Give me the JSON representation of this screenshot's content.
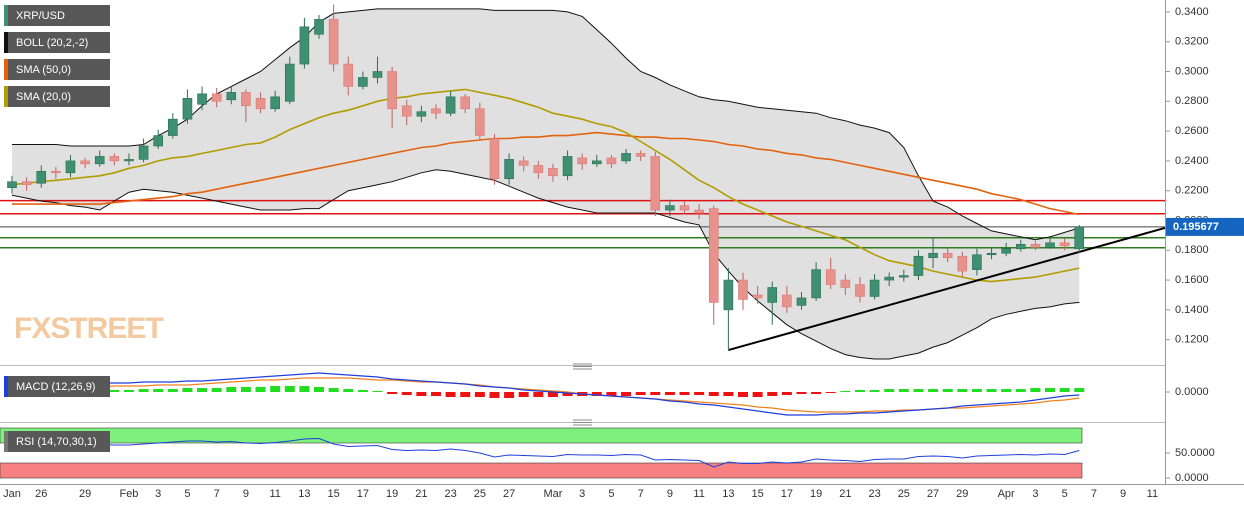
{
  "chart_data": [
    {
      "type": "candlestick",
      "name": "XRP/USD",
      "watermark": "FXSTREET",
      "categories": [
        "Jan",
        null,
        "26",
        null,
        null,
        "29",
        null,
        null,
        "Feb",
        null,
        "3",
        null,
        "5",
        null,
        "7",
        null,
        "9",
        null,
        "11",
        null,
        "13",
        null,
        "15",
        null,
        "17",
        null,
        "19",
        null,
        "21",
        null,
        "23",
        null,
        "25",
        null,
        "27",
        null,
        null,
        "Mar",
        null,
        "3",
        null,
        "5",
        null,
        "7",
        null,
        "9",
        null,
        "11",
        null,
        "13",
        null,
        "15",
        null,
        "17",
        null,
        "19",
        null,
        "21",
        null,
        "23",
        null,
        "25",
        null,
        "27",
        null,
        "29",
        null,
        null,
        "Apr",
        null,
        "3",
        null,
        "5",
        null,
        "7",
        null,
        "9",
        null,
        "11"
      ],
      "open": [
        0.222,
        0.226,
        0.225,
        0.233,
        0.232,
        0.24,
        0.238,
        0.243,
        0.24,
        0.241,
        0.25,
        0.257,
        0.268,
        0.278,
        0.285,
        0.281,
        0.286,
        0.282,
        0.275,
        0.28,
        0.305,
        0.325,
        0.335,
        0.305,
        0.29,
        0.296,
        0.3,
        0.277,
        0.27,
        0.275,
        0.272,
        0.283,
        0.275,
        0.255,
        0.228,
        0.24,
        0.237,
        0.235,
        0.23,
        0.242,
        0.238,
        0.242,
        0.24,
        0.245,
        0.243,
        0.207,
        0.21,
        0.207,
        0.208,
        0.14,
        0.16,
        0.15,
        0.145,
        0.15,
        0.143,
        0.148,
        0.167,
        0.16,
        0.157,
        0.149,
        0.16,
        0.162,
        0.163,
        0.175,
        0.178,
        0.176,
        0.167,
        0.177,
        0.178,
        0.181,
        0.184,
        0.182,
        0.185,
        0.181,
        null,
        null,
        null,
        null,
        null
      ],
      "high": [
        0.23,
        0.229,
        0.237,
        0.236,
        0.244,
        0.242,
        0.247,
        0.245,
        0.245,
        0.255,
        0.261,
        0.272,
        0.288,
        0.29,
        0.289,
        0.29,
        0.288,
        0.286,
        0.287,
        0.31,
        0.336,
        0.338,
        0.345,
        0.31,
        0.3,
        0.31,
        0.303,
        0.281,
        0.277,
        0.278,
        0.287,
        0.285,
        0.279,
        0.258,
        0.245,
        0.243,
        0.24,
        0.238,
        0.247,
        0.245,
        0.244,
        0.244,
        0.248,
        0.247,
        0.246,
        0.214,
        0.213,
        0.211,
        0.21,
        0.168,
        0.165,
        0.156,
        0.159,
        0.156,
        0.152,
        0.172,
        0.175,
        0.164,
        0.162,
        0.164,
        0.165,
        0.167,
        0.18,
        0.188,
        0.182,
        0.179,
        0.181,
        0.182,
        0.185,
        0.187,
        0.186,
        0.188,
        0.188,
        0.197,
        null,
        null,
        null,
        null,
        null
      ],
      "low": [
        0.218,
        0.22,
        0.222,
        0.228,
        0.229,
        0.235,
        0.236,
        0.237,
        0.237,
        0.239,
        0.248,
        0.255,
        0.265,
        0.274,
        0.276,
        0.278,
        0.266,
        0.272,
        0.273,
        0.278,
        0.302,
        0.322,
        0.3,
        0.284,
        0.288,
        0.292,
        0.262,
        0.264,
        0.266,
        0.268,
        0.27,
        0.272,
        0.254,
        0.224,
        0.224,
        0.233,
        0.228,
        0.226,
        0.227,
        0.234,
        0.236,
        0.235,
        0.238,
        0.24,
        0.203,
        0.203,
        0.204,
        0.201,
        0.13,
        0.113,
        0.14,
        0.144,
        0.13,
        0.138,
        0.14,
        0.146,
        0.154,
        0.15,
        0.145,
        0.147,
        0.156,
        0.159,
        0.16,
        0.168,
        0.172,
        0.162,
        0.163,
        0.174,
        0.176,
        0.179,
        0.18,
        0.181,
        0.18,
        0.178,
        null,
        null,
        null,
        null,
        null
      ],
      "close": [
        0.226,
        0.224,
        0.233,
        0.232,
        0.24,
        0.238,
        0.243,
        0.24,
        0.241,
        0.25,
        0.257,
        0.268,
        0.282,
        0.285,
        0.28,
        0.286,
        0.277,
        0.275,
        0.283,
        0.305,
        0.33,
        0.335,
        0.305,
        0.29,
        0.296,
        0.3,
        0.275,
        0.27,
        0.273,
        0.272,
        0.283,
        0.275,
        0.257,
        0.228,
        0.241,
        0.237,
        0.232,
        0.23,
        0.243,
        0.238,
        0.24,
        0.238,
        0.245,
        0.243,
        0.207,
        0.21,
        0.207,
        0.205,
        0.145,
        0.16,
        0.147,
        0.148,
        0.155,
        0.142,
        0.148,
        0.167,
        0.157,
        0.155,
        0.149,
        0.16,
        0.162,
        0.163,
        0.176,
        0.178,
        0.175,
        0.166,
        0.177,
        0.178,
        0.181,
        0.184,
        0.182,
        0.185,
        0.183,
        0.195677,
        null,
        null,
        null,
        null,
        null
      ],
      "up_color": "#3f8f72",
      "down_color": "#e8928d",
      "price_color": "#1565c0",
      "bands": {
        "name": "BOLL (20,2,-2)",
        "color": "#111111",
        "fill": "#d8d8d8",
        "upper": [
          0.251,
          0.251,
          0.251,
          0.251,
          0.25,
          0.25,
          0.25,
          0.25,
          0.25,
          0.251,
          0.257,
          0.262,
          0.268,
          0.277,
          0.285,
          0.29,
          0.295,
          0.3,
          0.308,
          0.316,
          0.323,
          0.333,
          0.339,
          0.34,
          0.341,
          0.342,
          0.342,
          0.342,
          0.342,
          0.342,
          0.342,
          0.342,
          0.342,
          0.341,
          0.341,
          0.341,
          0.341,
          0.341,
          0.34,
          0.337,
          0.328,
          0.319,
          0.309,
          0.3,
          0.296,
          0.291,
          0.287,
          0.283,
          0.281,
          0.28,
          0.278,
          0.276,
          0.275,
          0.274,
          0.273,
          0.272,
          0.269,
          0.267,
          0.264,
          0.262,
          0.259,
          0.249,
          0.23,
          0.213,
          0.209,
          0.203,
          0.198,
          0.193,
          0.191,
          0.189,
          0.187,
          0.189,
          0.192,
          0.195,
          null,
          null,
          null,
          null,
          null
        ],
        "lower": [
          0.217,
          0.215,
          0.213,
          0.212,
          0.21,
          0.209,
          0.207,
          0.213,
          0.219,
          0.221,
          0.22,
          0.219,
          0.217,
          0.215,
          0.213,
          0.211,
          0.209,
          0.207,
          0.207,
          0.207,
          0.208,
          0.208,
          0.214,
          0.22,
          0.222,
          0.224,
          0.226,
          0.229,
          0.232,
          0.234,
          0.233,
          0.231,
          0.229,
          0.227,
          0.223,
          0.219,
          0.215,
          0.212,
          0.209,
          0.207,
          0.205,
          0.205,
          0.205,
          0.205,
          0.205,
          0.202,
          0.199,
          0.197,
          0.178,
          0.166,
          0.155,
          0.146,
          0.138,
          0.13,
          0.124,
          0.119,
          0.114,
          0.11,
          0.108,
          0.107,
          0.107,
          0.109,
          0.111,
          0.115,
          0.118,
          0.123,
          0.128,
          0.134,
          0.137,
          0.139,
          0.141,
          0.142,
          0.144,
          0.145,
          null,
          null,
          null,
          null,
          null
        ]
      },
      "series": [
        {
          "name": "SMA (50,0)",
          "color": "#e2620e",
          "values": [
            0.211,
            0.211,
            0.211,
            0.211,
            0.211,
            0.211,
            0.211,
            0.212,
            0.213,
            0.214,
            0.215,
            0.216,
            0.218,
            0.219,
            0.221,
            0.223,
            0.225,
            0.227,
            0.229,
            0.231,
            0.233,
            0.235,
            0.237,
            0.239,
            0.241,
            0.243,
            0.245,
            0.247,
            0.249,
            0.25,
            0.252,
            0.253,
            0.254,
            0.255,
            0.255,
            0.256,
            0.256,
            0.257,
            0.257,
            0.258,
            0.259,
            0.258,
            0.257,
            0.256,
            0.256,
            0.255,
            0.255,
            0.254,
            0.253,
            0.251,
            0.25,
            0.248,
            0.247,
            0.245,
            0.244,
            0.242,
            0.241,
            0.239,
            0.237,
            0.235,
            0.233,
            0.231,
            0.229,
            0.227,
            0.225,
            0.223,
            0.221,
            0.218,
            0.216,
            0.214,
            0.211,
            0.208,
            0.206,
            0.204,
            null,
            null,
            null,
            null,
            null
          ]
        },
        {
          "name": "SMA (20,0)",
          "color": "#b39c00",
          "values": [
            0.224,
            0.225,
            0.226,
            0.227,
            0.228,
            0.229,
            0.23,
            0.232,
            0.235,
            0.237,
            0.24,
            0.242,
            0.243,
            0.245,
            0.247,
            0.249,
            0.251,
            0.252,
            0.256,
            0.261,
            0.265,
            0.269,
            0.272,
            0.274,
            0.277,
            0.28,
            0.282,
            0.283,
            0.285,
            0.286,
            0.287,
            0.288,
            0.286,
            0.284,
            0.282,
            0.279,
            0.276,
            0.272,
            0.27,
            0.268,
            0.265,
            0.263,
            0.259,
            0.253,
            0.247,
            0.241,
            0.234,
            0.227,
            0.222,
            0.216,
            0.211,
            0.207,
            0.203,
            0.199,
            0.196,
            0.193,
            0.19,
            0.187,
            0.182,
            0.177,
            0.173,
            0.171,
            0.169,
            0.166,
            0.164,
            0.162,
            0.16,
            0.159,
            0.16,
            0.161,
            0.162,
            0.164,
            0.166,
            0.168,
            null,
            null,
            null,
            null,
            null
          ]
        }
      ],
      "levels": [
        {
          "value": 0.2133,
          "color": "#dd1111"
        },
        {
          "value": 0.2045,
          "color": "#dd1111"
        },
        {
          "value": 0.1884,
          "color": "#2e7d1e"
        },
        {
          "value": 0.1817,
          "color": "#2e7d1e"
        }
      ],
      "trendline": [
        0.113,
        0.195
      ],
      "ylim": [
        0.105,
        0.348
      ],
      "yticks": [
        {
          "value": 0.12,
          "label": "0.1200"
        },
        {
          "value": 0.14,
          "label": "0.1400"
        },
        {
          "value": 0.16,
          "label": "0.1600"
        },
        {
          "value": 0.18,
          "label": "0.1800"
        },
        {
          "value": 0.2,
          "label": "0.2000"
        },
        {
          "value": 0.22,
          "label": "0.2200"
        },
        {
          "value": 0.24,
          "label": "0.2400"
        },
        {
          "value": 0.26,
          "label": "0.2600"
        },
        {
          "value": 0.28,
          "label": "0.2800"
        },
        {
          "value": 0.3,
          "label": "0.3000"
        },
        {
          "value": 0.32,
          "label": "0.3200"
        },
        {
          "value": 0.34,
          "label": "0.3400"
        }
      ]
    },
    {
      "type": "macd",
      "name": "MACD (12,26,9)",
      "color": "#1f3fdc",
      "signal_color": "#f0821e",
      "up_color": "#22dd22",
      "down_color": "#ee1111",
      "macd": [
        0.007,
        0.007,
        0.007,
        0.008,
        0.008,
        0.008,
        0.009,
        0.009,
        0.009,
        0.01,
        0.01,
        0.01,
        0.011,
        0.011,
        0.012,
        0.013,
        0.014,
        0.015,
        0.016,
        0.017,
        0.018,
        0.019,
        0.018,
        0.017,
        0.016,
        0.015,
        0.013,
        0.012,
        0.011,
        0.01,
        0.009,
        0.008,
        0.006,
        0.005,
        0.004,
        0.002,
        0.001,
        0.0,
        -0.001,
        -0.002,
        -0.003,
        -0.004,
        -0.005,
        -0.006,
        -0.007,
        -0.009,
        -0.01,
        -0.012,
        -0.013,
        -0.015,
        -0.017,
        -0.019,
        -0.021,
        -0.023,
        -0.023,
        -0.023,
        -0.022,
        -0.022,
        -0.021,
        -0.021,
        -0.02,
        -0.019,
        -0.018,
        -0.017,
        -0.016,
        -0.014,
        -0.013,
        -0.012,
        -0.011,
        -0.01,
        -0.008,
        -0.006,
        -0.004,
        -0.003,
        null,
        null,
        null,
        null,
        null
      ],
      "signal": [
        0.004,
        0.004,
        0.004,
        0.005,
        0.005,
        0.005,
        0.005,
        0.006,
        0.006,
        0.006,
        0.007,
        0.007,
        0.007,
        0.008,
        0.009,
        0.01,
        0.011,
        0.012,
        0.012,
        0.013,
        0.014,
        0.014,
        0.014,
        0.014,
        0.013,
        0.012,
        0.012,
        0.011,
        0.01,
        0.01,
        0.009,
        0.008,
        0.007,
        0.005,
        0.004,
        0.003,
        0.002,
        0.001,
        0.0,
        -0.002,
        -0.003,
        -0.004,
        -0.005,
        -0.006,
        -0.007,
        -0.008,
        -0.009,
        -0.01,
        -0.011,
        -0.012,
        -0.013,
        -0.015,
        -0.016,
        -0.018,
        -0.019,
        -0.02,
        -0.02,
        -0.02,
        -0.02,
        -0.019,
        -0.019,
        -0.018,
        -0.018,
        -0.017,
        -0.016,
        -0.016,
        -0.015,
        -0.014,
        -0.013,
        -0.012,
        -0.011,
        -0.009,
        -0.008,
        -0.006,
        null,
        null,
        null,
        null,
        null
      ],
      "histogram": [
        0.002,
        0.002,
        0.002,
        0.002,
        0.002,
        0.002,
        0.002,
        0.002,
        0.002,
        0.003,
        0.003,
        0.003,
        0.004,
        0.004,
        0.004,
        0.005,
        0.005,
        0.005,
        0.006,
        0.006,
        0.006,
        0.005,
        0.004,
        0.003,
        0.002,
        0.001,
        -0.002,
        -0.003,
        -0.004,
        -0.004,
        -0.005,
        -0.005,
        -0.005,
        -0.006,
        -0.006,
        -0.005,
        -0.005,
        -0.005,
        -0.004,
        -0.004,
        -0.004,
        -0.004,
        -0.004,
        -0.003,
        -0.003,
        -0.003,
        -0.003,
        -0.003,
        -0.004,
        -0.004,
        -0.005,
        -0.005,
        -0.004,
        -0.003,
        -0.002,
        -0.002,
        -0.001,
        0.001,
        0.002,
        0.002,
        0.003,
        0.003,
        0.003,
        0.003,
        0.003,
        0.003,
        0.003,
        0.003,
        0.003,
        0.003,
        0.004,
        0.004,
        0.004,
        0.004,
        null,
        null,
        null,
        null,
        null
      ],
      "ylim": [
        -0.028,
        0.022
      ],
      "yticks": [
        {
          "value": 0,
          "label": "0.0000"
        }
      ]
    },
    {
      "type": "rsi",
      "name": "RSI (14,70,30,1)",
      "color": "#1f3fdc",
      "values": [
        62,
        60,
        64,
        63,
        66,
        65,
        67,
        66,
        66,
        68,
        70,
        72,
        74,
        74,
        72,
        73,
        70,
        69,
        71,
        74,
        78,
        79,
        68,
        63,
        64,
        65,
        57,
        55,
        56,
        55,
        58,
        55,
        50,
        42,
        46,
        45,
        44,
        43,
        47,
        46,
        46,
        45,
        47,
        46,
        36,
        37,
        36,
        35,
        22,
        32,
        29,
        29,
        32,
        30,
        32,
        38,
        36,
        35,
        33,
        37,
        38,
        38,
        43,
        44,
        43,
        40,
        44,
        45,
        46,
        47,
        46,
        48,
        47,
        55,
        null,
        null,
        null,
        null,
        null
      ],
      "zones": [
        {
          "from": 70,
          "to": 100,
          "color": "#7df07d"
        },
        {
          "from": 0,
          "to": 30,
          "color": "#f78181"
        }
      ],
      "ylim": [
        0,
        100
      ],
      "yticks": [
        {
          "value": 50,
          "label": "50.0000"
        },
        {
          "value": 0,
          "label": "0.0000"
        }
      ]
    }
  ]
}
